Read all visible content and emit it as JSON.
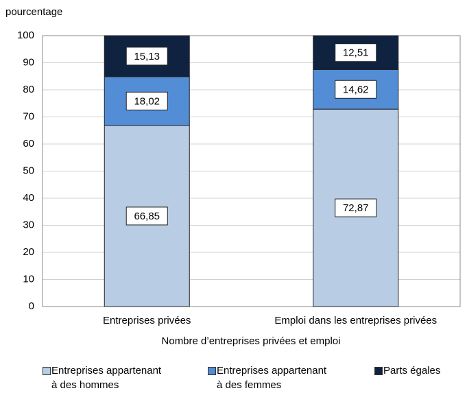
{
  "chart_data": {
    "type": "stacked_bar",
    "y_axis_label": "pourcentage",
    "x_axis_label": "Nombre d’entreprises privées et emploi",
    "categories": [
      "Entreprises privées",
      "Emploi dans les entreprises privées"
    ],
    "series": [
      {
        "name": "Entreprises appartenant\nà des hommes",
        "color": "#b8cce4",
        "values": [
          66.85,
          72.87
        ],
        "value_labels": [
          "66,85",
          "72,87"
        ]
      },
      {
        "name": "Entreprises appartenant\nà des femmes",
        "color": "#538dd5",
        "values": [
          18.02,
          14.62
        ],
        "value_labels": [
          "18,02",
          "14,62"
        ]
      },
      {
        "name": "Parts égales",
        "color": "#0f2341",
        "values": [
          15.13,
          12.51
        ],
        "value_labels": [
          "15,13",
          "12,51"
        ]
      }
    ],
    "ylim": [
      0,
      100
    ],
    "yticks": [
      0,
      10,
      20,
      30,
      40,
      50,
      60,
      70,
      80,
      90,
      100
    ],
    "grid": true
  }
}
